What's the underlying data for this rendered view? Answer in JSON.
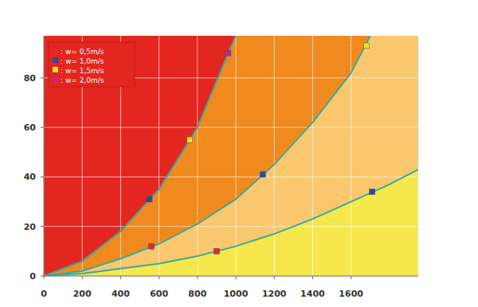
{
  "chart_data": {
    "type": "scatter",
    "color": "#f6e84c",
    "xlim": [
      0,
      1950
    ],
    "ylim": [
      0,
      97
    ],
    "xticks": [
      0,
      200,
      400,
      600,
      800,
      1000,
      1200,
      1400,
      1600
    ],
    "yticks": [
      0,
      20,
      40,
      60,
      80
    ],
    "grid": true,
    "legend": "top-left",
    "marker": "square",
    "series": [
      {
        "type": "area",
        "color": "#e3261f",
        "x": [
          0,
          200,
          400,
          600,
          800,
          960,
          1000
        ],
        "values": [
          0,
          6,
          18,
          35,
          60,
          90,
          97
        ]
      },
      {
        "type": "area",
        "color": "#f08a1e",
        "x": [
          0,
          200,
          400,
          600,
          800,
          1000,
          1200,
          1400,
          1600,
          1700
        ],
        "values": [
          0,
          2,
          7,
          13,
          21,
          31,
          45,
          62,
          82,
          97
        ]
      },
      {
        "type": "area",
        "color": "#f9c76e",
        "x": [
          0,
          200,
          400,
          600,
          800,
          1000,
          1200,
          1400,
          1600,
          1800,
          1950
        ],
        "values": [
          0,
          1,
          3,
          5,
          8,
          12,
          17,
          23,
          30,
          37,
          43
        ]
      },
      {
        "name": ": w= 0,5m/s",
        "color": "#e8262b",
        "x": [
          560,
          900
        ],
        "values": [
          12,
          10
        ]
      },
      {
        "name": ": w= 1,0m/s",
        "color": "#1f4fa8",
        "x": [
          550,
          1140,
          1710
        ],
        "values": [
          31,
          41,
          34
        ]
      },
      {
        "name": ": w= 1,5m/s",
        "color": "#f4e21a",
        "x": [
          760,
          1680
        ],
        "values": [
          55,
          93
        ]
      },
      {
        "name": ": w= 2,0m/s",
        "color": "#c2229a",
        "x": [
          960
        ],
        "values": [
          90
        ]
      }
    ]
  }
}
